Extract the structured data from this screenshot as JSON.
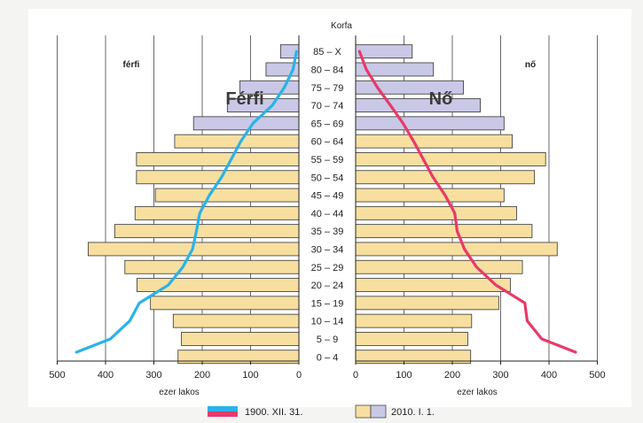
{
  "chart_data": {
    "type": "bar",
    "title": "Korfa",
    "categories": [
      "0 – 4",
      "5 – 9",
      "10 – 14",
      "15 – 19",
      "20 – 24",
      "25 – 29",
      "30 – 34",
      "35 – 39",
      "40 – 44",
      "45 – 49",
      "50 – 54",
      "55 – 59",
      "60 – 64",
      "65 – 69",
      "70 – 74",
      "75 – 79",
      "80 – 84",
      "85 – X"
    ],
    "xlabel_left": "ezer lakos",
    "xlabel_right": "ezer lakos",
    "xticks_left": [
      500,
      400,
      300,
      200,
      100,
      0
    ],
    "xticks_right": [
      0,
      100,
      200,
      300,
      400,
      500
    ],
    "xlim": [
      0,
      500
    ],
    "grid": true,
    "left_header": "férfi",
    "right_header": "nő",
    "overlay_left": "Férfi",
    "overlay_right": "Nő",
    "series": [
      {
        "name": "2010. I. 1.",
        "kind": "bars",
        "male": [
          250,
          243,
          260,
          307,
          335,
          360,
          436,
          381,
          339,
          297,
          336,
          336,
          257,
          218,
          148,
          122,
          68,
          38
        ],
        "female": [
          238,
          232,
          240,
          296,
          320,
          345,
          417,
          365,
          333,
          307,
          370,
          393,
          324,
          307,
          258,
          223,
          161,
          117
        ]
      },
      {
        "name": "1900. XII. 31.",
        "kind": "line",
        "color": "#29b3e8",
        "male": [
          460,
          390,
          350,
          330,
          270,
          240,
          220,
          212,
          205,
          185,
          160,
          140,
          120,
          95,
          55,
          30,
          12,
          5
        ],
        "female": [
          455,
          385,
          355,
          350,
          290,
          250,
          225,
          210,
          205,
          185,
          160,
          140,
          120,
          98,
          72,
          45,
          22,
          8
        ]
      }
    ],
    "colors": {
      "bar_yellow": "#f7dfa0",
      "bar_lavender": "#c9c8e6",
      "bar_stroke": "#333333",
      "male_line": "#29b3e8",
      "female_line": "#e63a6a"
    },
    "legend": [
      {
        "label": "1900. XII. 31."
      },
      {
        "label": "2010. I. 1."
      }
    ]
  }
}
